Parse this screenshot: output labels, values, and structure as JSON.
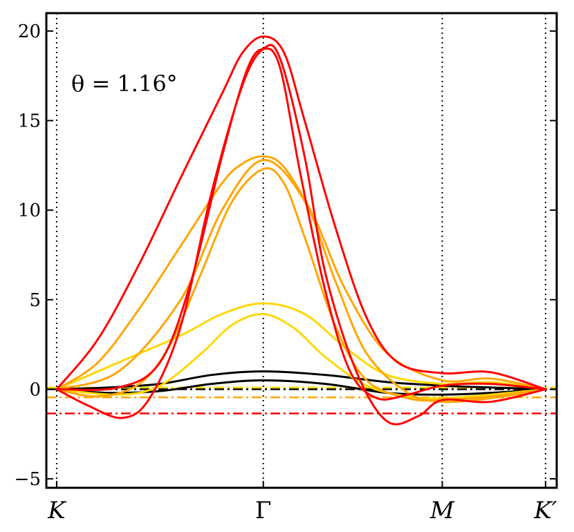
{
  "chart_data": {
    "type": "line",
    "title": "",
    "annotation": "θ = 1.16°",
    "xlabel": "",
    "ylabel": "",
    "x_ticks": [
      {
        "pos": 0.0,
        "label": "K",
        "italic": true
      },
      {
        "pos": 1.0,
        "label": "Γ",
        "italic": false
      },
      {
        "pos": 1.866,
        "label": "M",
        "italic": true
      },
      {
        "pos": 2.366,
        "label": "K′",
        "italic": true
      }
    ],
    "xlim": [
      -0.05,
      2.42
    ],
    "ylim": [
      -5.5,
      21.0
    ],
    "y_ticks": [
      -5,
      0,
      5,
      10,
      15,
      20
    ],
    "y_tick_labels": [
      "−5",
      "0",
      "5",
      "10",
      "15",
      "20"
    ],
    "vlines": [
      0.0,
      1.0,
      1.866,
      2.366
    ],
    "hlines": [
      {
        "y": 0.0,
        "color": "#000000",
        "name": "reference-black"
      },
      {
        "y": -0.45,
        "color": "#FFA500",
        "name": "reference-orange"
      },
      {
        "y": 0.1,
        "color": "#FFD700",
        "name": "reference-gold"
      },
      {
        "y": -1.35,
        "color": "#FF0000",
        "name": "reference-red"
      }
    ],
    "series": [
      {
        "name": "black-band-1",
        "color": "#000000",
        "x": [
          0,
          0.25,
          0.5,
          0.75,
          1.0,
          1.3,
          1.6,
          1.866,
          2.1,
          2.366
        ],
        "y": [
          0,
          0.1,
          0.3,
          0.8,
          1.0,
          0.8,
          0.4,
          0.2,
          0.1,
          0
        ]
      },
      {
        "name": "black-band-2",
        "color": "#000000",
        "x": [
          0,
          0.25,
          0.5,
          0.75,
          1.0,
          1.3,
          1.6,
          1.866,
          2.1,
          2.366
        ],
        "y": [
          0,
          -0.2,
          -0.1,
          0.3,
          0.5,
          0.3,
          -0.2,
          -0.3,
          -0.2,
          0
        ]
      },
      {
        "name": "gold-band-1",
        "color": "#FFD700",
        "x": [
          0,
          0.3,
          0.6,
          0.8,
          1.0,
          1.2,
          1.4,
          1.6,
          1.866,
          2.1,
          2.366
        ],
        "y": [
          0,
          1.5,
          3.0,
          4.2,
          4.8,
          4.2,
          2.3,
          0.8,
          0.3,
          0.4,
          0
        ]
      },
      {
        "name": "gold-band-2",
        "color": "#FFD700",
        "x": [
          0,
          0.3,
          0.5,
          0.7,
          0.85,
          1.0,
          1.15,
          1.3,
          1.5,
          1.7,
          1.866,
          2.1,
          2.366
        ],
        "y": [
          0,
          -0.3,
          0.2,
          2.0,
          3.6,
          4.2,
          3.4,
          1.8,
          0.2,
          -0.4,
          -0.5,
          -0.3,
          0
        ]
      },
      {
        "name": "orange-band-1",
        "color": "#FFA500",
        "x": [
          0,
          0.2,
          0.4,
          0.6,
          0.8,
          0.9,
          1.0,
          1.1,
          1.25,
          1.4,
          1.6,
          1.866,
          2.1,
          2.366
        ],
        "y": [
          0,
          1.5,
          4.5,
          8.0,
          11.5,
          12.6,
          13.0,
          12.4,
          9.5,
          5.5,
          2.0,
          0.5,
          0.6,
          0
        ]
      },
      {
        "name": "orange-band-2",
        "color": "#FFA500",
        "x": [
          0,
          0.2,
          0.4,
          0.55,
          0.7,
          0.85,
          1.0,
          1.1,
          1.2,
          1.35,
          1.5,
          1.7,
          1.866,
          2.1,
          2.366
        ],
        "y": [
          0,
          -0.4,
          0.3,
          2.5,
          6.5,
          10.5,
          12.3,
          11.5,
          8.5,
          3.5,
          0.5,
          -0.5,
          -0.6,
          -0.4,
          0
        ]
      },
      {
        "name": "orange-band-3",
        "color": "#FFA500",
        "x": [
          0,
          0.3,
          0.6,
          0.8,
          1.0,
          1.2,
          1.35,
          1.5,
          1.7,
          1.866,
          2.1,
          2.366
        ],
        "y": [
          0,
          1.0,
          5.0,
          10.0,
          12.8,
          10.5,
          6.0,
          2.0,
          -0.2,
          -0.7,
          -0.5,
          0
        ]
      },
      {
        "name": "red-band-1",
        "color": "#FF0000",
        "x": [
          0,
          0.2,
          0.4,
          0.6,
          0.8,
          0.9,
          1.0,
          1.1,
          1.2,
          1.35,
          1.5,
          1.65,
          1.866,
          2.1,
          2.366
        ],
        "y": [
          0,
          2.8,
          7.0,
          11.8,
          16.5,
          18.8,
          19.7,
          18.8,
          15.0,
          9.0,
          4.0,
          1.5,
          0.9,
          0.95,
          0
        ]
      },
      {
        "name": "red-band-2",
        "color": "#FF0000",
        "x": [
          0,
          0.15,
          0.32,
          0.45,
          0.6,
          0.75,
          0.9,
          1.0,
          1.08,
          1.2,
          1.3,
          1.45,
          1.6,
          1.75,
          1.866,
          2.1,
          2.366
        ],
        "y": [
          0,
          -0.9,
          -1.6,
          -0.5,
          3.5,
          11.0,
          17.0,
          19.0,
          18.5,
          13.0,
          6.5,
          1.0,
          -1.8,
          -1.5,
          -0.6,
          -0.7,
          0
        ]
      },
      {
        "name": "red-band-3",
        "color": "#FF0000",
        "x": [
          0,
          0.3,
          0.5,
          0.65,
          0.8,
          0.92,
          1.0,
          1.08,
          1.18,
          1.3,
          1.42,
          1.55,
          1.7,
          1.866,
          2.1,
          2.366
        ],
        "y": [
          0,
          0.1,
          1.5,
          6.0,
          13.0,
          17.8,
          19.0,
          18.0,
          12.0,
          5.5,
          1.0,
          -0.5,
          -0.3,
          0.2,
          0.3,
          0
        ]
      }
    ]
  }
}
